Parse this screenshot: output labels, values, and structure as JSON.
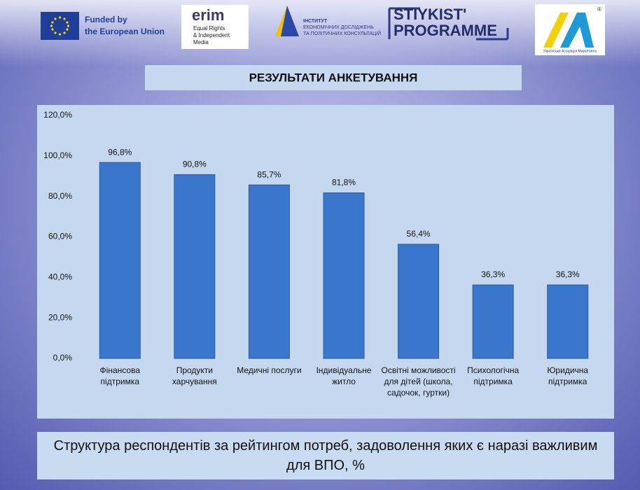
{
  "logos": {
    "eu": [
      "Funded by",
      "the European Union"
    ],
    "erim": {
      "name": "erim",
      "lines": [
        "Equal Rights",
        "& Independent",
        "Media"
      ]
    },
    "institute": [
      "ІНСТИТУТ",
      "ЕКОНОМІЧНИХ ДОСЛІДЖЕНЬ",
      "ТА ПОЛІТИЧНИХ КОНСУЛЬТАЦІЙ"
    ],
    "stiykist": [
      "STIYKIST'",
      "PROGRAMME"
    ],
    "uam": {
      "caption": "Українська Асоціація Маркетингу",
      "mark": "®"
    }
  },
  "header": "РЕЗУЛЬТАТИ АНКЕТУВАННЯ",
  "chart_data": {
    "type": "bar",
    "caption": "Структура респондентів за рейтингом потреб, задоволення яких  є наразі важливим для ВПО, %",
    "categories": [
      "Фінансова підтримка",
      "Продукти харчування",
      "Медичні послуги",
      "Індивідуальне житло",
      "Освітні можливості для дітей (школа, садочок, гуртки)",
      "Психологічна підтримка",
      "Юридична підтримка"
    ],
    "values": [
      96.8,
      90.8,
      85.7,
      81.8,
      56.4,
      36.3,
      36.3
    ],
    "value_labels": [
      "96,8%",
      "90,8%",
      "85,7%",
      "81,8%",
      "56,4%",
      "36,3%",
      "36,3%"
    ],
    "color": "#3a76cc",
    "ylim": [
      0,
      120
    ],
    "yticks": [
      {
        "value": 0,
        "label": "0,0%"
      },
      {
        "value": 20,
        "label": "20,0%"
      },
      {
        "value": 40,
        "label": "40,0%"
      },
      {
        "value": 60,
        "label": "60,0%"
      },
      {
        "value": 80,
        "label": "80,0%"
      },
      {
        "value": 100,
        "label": "100,0%"
      },
      {
        "value": 120,
        "label": "120,0%"
      }
    ],
    "grid": false
  }
}
